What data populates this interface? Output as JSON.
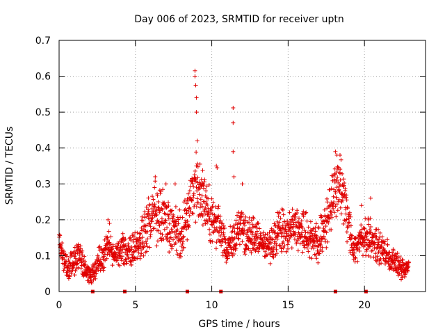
{
  "chart_data": {
    "type": "scatter",
    "title": "Day 006 of 2023, SRMTID for receiver uptn",
    "xlabel": "GPS time / hours",
    "ylabel": "SRMTID / TECUs",
    "xlim": [
      0,
      24
    ],
    "ylim": [
      0,
      0.7
    ],
    "xticks": [
      0,
      5,
      10,
      15,
      20
    ],
    "xtick_labels": [
      "0",
      "5",
      "10",
      "15",
      "20"
    ],
    "yticks": [
      0,
      0.1,
      0.2,
      0.3,
      0.4,
      0.5,
      0.6,
      0.7
    ],
    "ytick_labels": [
      "0",
      "0.1",
      "0.2",
      "0.3",
      "0.4",
      "0.5",
      "0.6",
      "0.7"
    ],
    "grid": true,
    "marker": "+",
    "color": "#e00000",
    "series": [
      {
        "name": "SRMTID",
        "profile_x": [
          0.0,
          0.3,
          0.6,
          1.0,
          1.3,
          1.6,
          2.0,
          2.2,
          2.5,
          2.9,
          3.2,
          3.6,
          4.0,
          4.3,
          4.7,
          5.0,
          5.5,
          6.0,
          6.3,
          6.8,
          7.2,
          7.7,
          8.0,
          8.4,
          8.7,
          9.0,
          9.3,
          9.7,
          10.0,
          10.4,
          10.7,
          11.0,
          11.4,
          11.8,
          12.2,
          12.7,
          13.2,
          13.6,
          14.0,
          14.5,
          15.0,
          15.5,
          16.0,
          16.5,
          17.0,
          17.4,
          17.8,
          18.1,
          18.4,
          18.7,
          19.0,
          19.3,
          19.7,
          20.0,
          20.3,
          20.7,
          21.0,
          21.5,
          22.0,
          22.3,
          22.6,
          22.9
        ],
        "profile_y": [
          0.15,
          0.08,
          0.07,
          0.08,
          0.1,
          0.07,
          0.04,
          0.05,
          0.08,
          0.1,
          0.13,
          0.1,
          0.11,
          0.12,
          0.11,
          0.13,
          0.15,
          0.2,
          0.22,
          0.2,
          0.18,
          0.17,
          0.16,
          0.2,
          0.27,
          0.3,
          0.26,
          0.24,
          0.2,
          0.18,
          0.14,
          0.12,
          0.15,
          0.18,
          0.16,
          0.15,
          0.14,
          0.12,
          0.14,
          0.17,
          0.16,
          0.18,
          0.17,
          0.15,
          0.14,
          0.18,
          0.25,
          0.28,
          0.3,
          0.25,
          0.18,
          0.12,
          0.14,
          0.15,
          0.16,
          0.13,
          0.12,
          0.1,
          0.08,
          0.07,
          0.06,
          0.07
        ],
        "profile_spread": [
          0.02,
          0.03,
          0.03,
          0.04,
          0.04,
          0.03,
          0.02,
          0.02,
          0.03,
          0.04,
          0.04,
          0.03,
          0.03,
          0.04,
          0.04,
          0.05,
          0.06,
          0.07,
          0.08,
          0.07,
          0.07,
          0.06,
          0.06,
          0.07,
          0.08,
          0.09,
          0.08,
          0.07,
          0.07,
          0.06,
          0.05,
          0.04,
          0.05,
          0.06,
          0.05,
          0.05,
          0.04,
          0.04,
          0.05,
          0.06,
          0.05,
          0.06,
          0.06,
          0.05,
          0.05,
          0.06,
          0.07,
          0.07,
          0.07,
          0.07,
          0.06,
          0.04,
          0.04,
          0.05,
          0.05,
          0.04,
          0.04,
          0.04,
          0.03,
          0.03,
          0.02,
          0.02
        ],
        "peaks_x": [
          3.2,
          3.3,
          6.3,
          7.0,
          7.6,
          8.9,
          8.9,
          8.95,
          9.0,
          9.0,
          9.05,
          10.3,
          10.35,
          11.4,
          11.4,
          11.4,
          11.45,
          12.0,
          14.3,
          18.1,
          18.2,
          18.4,
          19.8,
          20.4
        ],
        "peaks_y": [
          0.2,
          0.19,
          0.32,
          0.3,
          0.3,
          0.615,
          0.6,
          0.575,
          0.54,
          0.5,
          0.42,
          0.35,
          0.345,
          0.512,
          0.47,
          0.39,
          0.32,
          0.3,
          0.22,
          0.39,
          0.38,
          0.38,
          0.24,
          0.26
        ]
      }
    ],
    "gap_markers_x": [
      2.2,
      4.3,
      8.4,
      10.6,
      18.1,
      20.1
    ]
  }
}
